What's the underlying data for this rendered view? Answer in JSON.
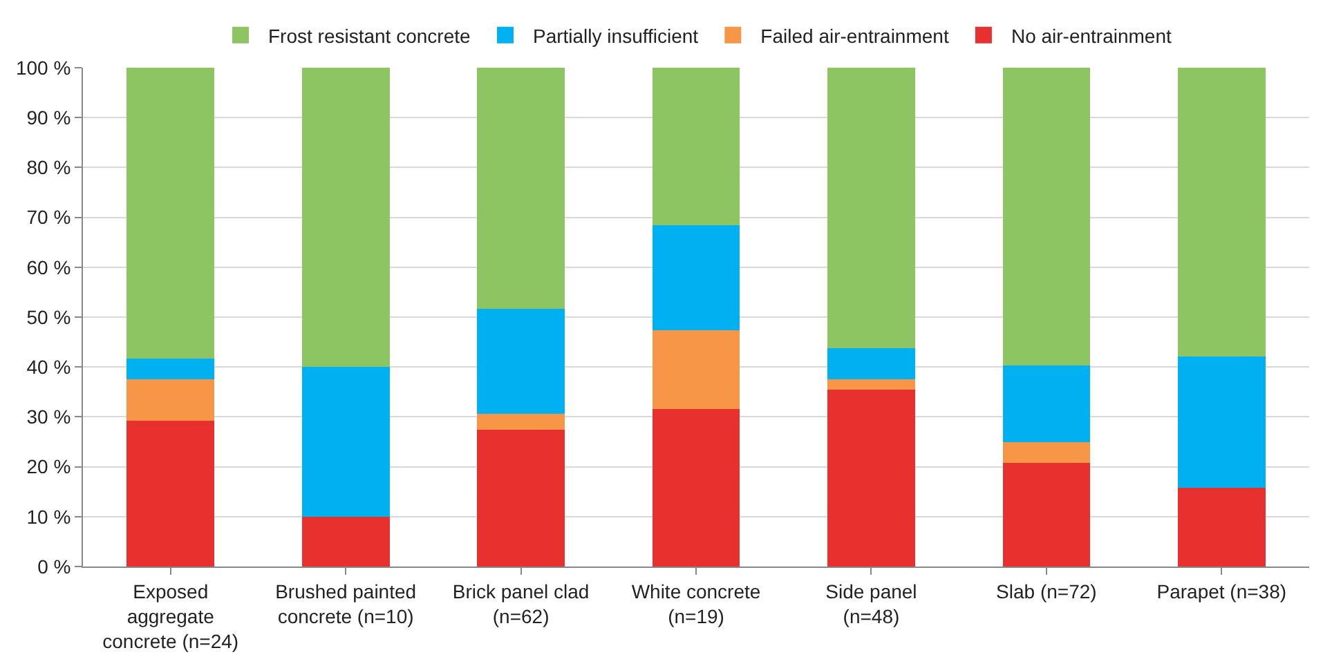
{
  "chart_data": {
    "type": "bar",
    "stacked": true,
    "categories": [
      "Exposed aggregate concrete (n=24)",
      "Brushed painted concrete (n=10)",
      "Brick panel clad (n=62)",
      "White concrete (n=19)",
      "Side panel (n=48)",
      "Slab (n=72)",
      "Parapet (n=38)"
    ],
    "series": [
      {
        "name": "No air-entrainment",
        "color": "#e8312e",
        "values": [
          29.2,
          10,
          27.4,
          31.6,
          35.4,
          20.8,
          15.8
        ]
      },
      {
        "name": "Failed air-entrainment",
        "color": "#f79646",
        "values": [
          8.3,
          0,
          3.2,
          15.8,
          2.1,
          4.2,
          0
        ]
      },
      {
        "name": "Partially insufficient",
        "color": "#00b0f0",
        "values": [
          4.2,
          30,
          21.0,
          21.0,
          6.2,
          15.3,
          26.3
        ]
      },
      {
        "name": "Frost resistant concrete",
        "color": "#8dc563",
        "values": [
          58.3,
          60,
          48.4,
          31.6,
          56.3,
          59.7,
          57.9
        ]
      }
    ],
    "ylim": [
      0,
      100
    ],
    "yticks": [
      {
        "value": 0,
        "label": "0 %"
      },
      {
        "value": 10,
        "label": "10 %"
      },
      {
        "value": 20,
        "label": "20 %"
      },
      {
        "value": 30,
        "label": "30 %"
      },
      {
        "value": 40,
        "label": "40 %"
      },
      {
        "value": 50,
        "label": "50 %"
      },
      {
        "value": 60,
        "label": "60 %"
      },
      {
        "value": 70,
        "label": "70 %"
      },
      {
        "value": 80,
        "label": "80 %"
      },
      {
        "value": 90,
        "label": "90 %"
      },
      {
        "value": 100,
        "label": "100 %"
      }
    ],
    "grid": "y",
    "legend": "top"
  }
}
